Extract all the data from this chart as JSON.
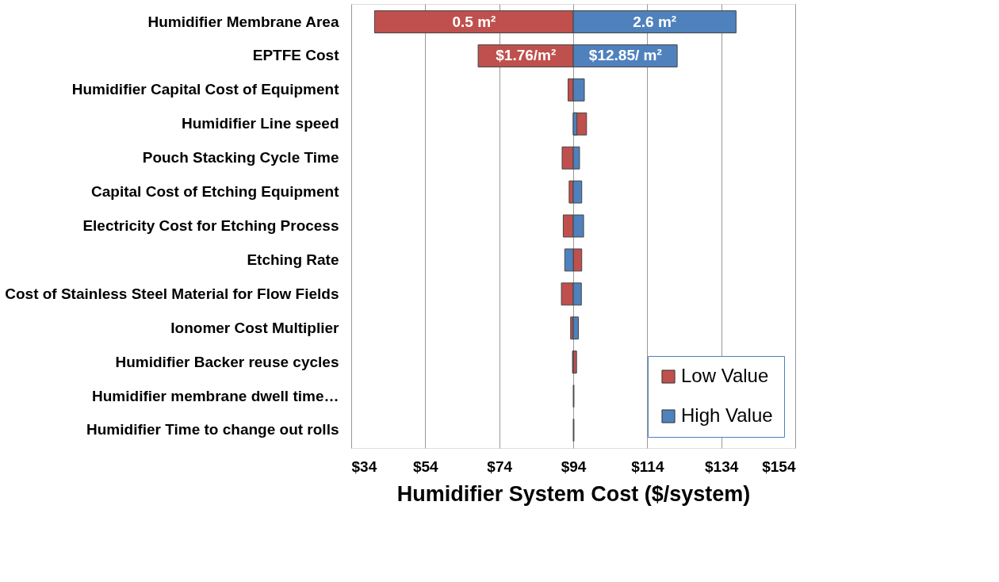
{
  "chart_data": {
    "type": "bar",
    "orientation": "horizontal",
    "xlabel": "Humidifier System Cost ($/system)",
    "categories": [
      "Humidifier Membrane Area",
      "EPTFE Cost",
      "Humidifier Capital Cost of Equipment",
      "Humidifier Line speed",
      "Pouch Stacking Cycle Time ",
      "Capital Cost of Etching Equipment",
      "Electricity Cost for Etching Process",
      "Etching Rate",
      "Cost of Stainless Steel Material for Flow Fields",
      "Ionomer Cost Multiplier",
      "Humidifier Backer reuse cycles",
      "Humidifier membrane dwell time…",
      "Humidifier Time to change out rolls"
    ],
    "series": [
      {
        "name": "Low Value",
        "color": "#c0504d",
        "base": [
          94,
          94,
          94,
          94,
          94,
          94,
          94,
          94,
          94,
          94,
          94,
          null,
          null
        ],
        "values": [
          -53.7,
          -25.7,
          -1.4,
          3.6,
          -3.0,
          -1.1,
          -2.7,
          2.3,
          -3.2,
          -0.7,
          0.9,
          null,
          null
        ]
      },
      {
        "name": "High Value",
        "color": "#4f81bd",
        "base": [
          94,
          94,
          94,
          94,
          94,
          94,
          94,
          94,
          94,
          94,
          94,
          94,
          94
        ],
        "values": [
          44.0,
          28.1,
          3.0,
          1.0,
          1.7,
          2.3,
          2.8,
          -2.3,
          2.2,
          1.4,
          -0.2,
          0.2,
          0.2
        ]
      }
    ],
    "annotations": [
      {
        "text": "0.5 m²",
        "x": 67.2,
        "y": "Humidifier Membrane Area"
      },
      {
        "text": "2.6 m²",
        "x": 116.0,
        "y": "Humidifier Membrane Area"
      },
      {
        "text": "$1.76/m²",
        "x": 81.2,
        "y": "EPTFE Cost"
      },
      {
        "text": "$12.85/ m²",
        "x": 108.1,
        "y": "EPTFE Cost"
      }
    ],
    "xlim": [
      34,
      154
    ],
    "xticks": [
      {
        "value": 34,
        "label": "$34"
      },
      {
        "value": 54,
        "label": "$54"
      },
      {
        "value": 74,
        "label": "$74"
      },
      {
        "value": 94,
        "label": "$94"
      },
      {
        "value": 114,
        "label": "$114"
      },
      {
        "value": 134,
        "label": "$134"
      },
      {
        "value": 154,
        "label": "$154"
      }
    ],
    "grid": "x",
    "legend": "bottom right"
  }
}
